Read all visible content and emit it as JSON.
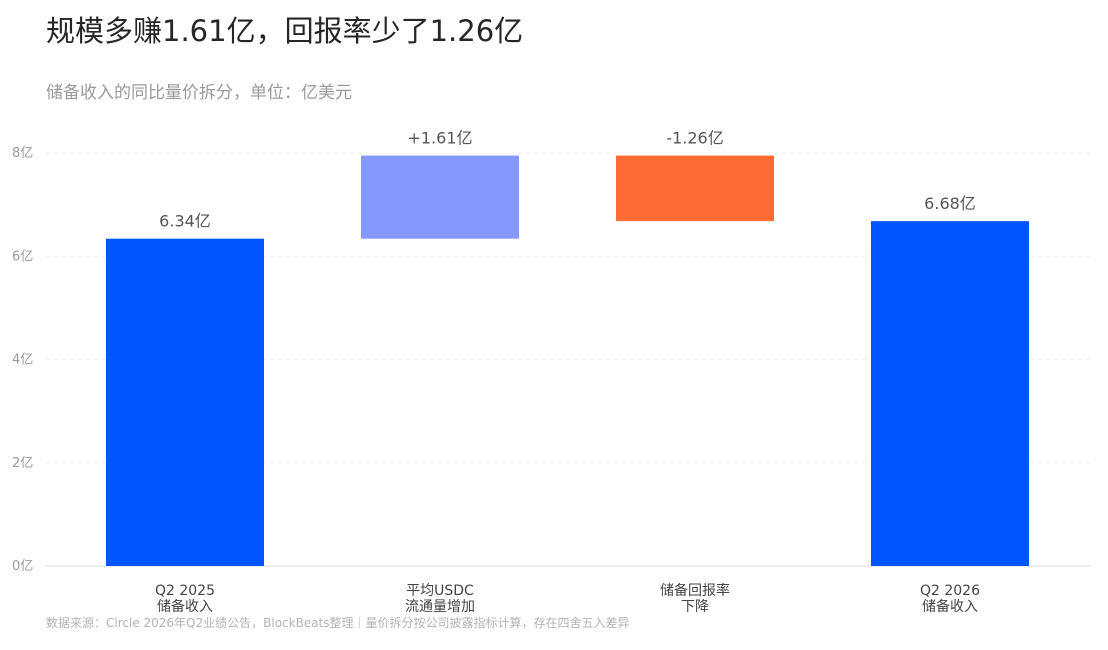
{
  "title": "规模多赚1.61亿，回报率少了1.26亿",
  "subtitle": "储备收入的同比量价拆分，单位：亿美元",
  "source": "数据来源：Circle 2026年Q2业绩公告，BlockBeats整理｜量价拆分按公司披露指标计算，存在四舍五入差异",
  "chart_data": {
    "type": "bar",
    "variant": "waterfall",
    "categories": [
      [
        "Q2 2025",
        "储备收入"
      ],
      [
        "平均USDC",
        "流通量增加"
      ],
      [
        "储备回报率",
        "下降"
      ],
      [
        "Q2 2026",
        "储备收入"
      ]
    ],
    "bars": [
      {
        "start": 0,
        "end": 6.34,
        "label": "6.34亿",
        "color": "#0055ff"
      },
      {
        "start": 6.34,
        "end": 7.95,
        "label": "+1.61亿",
        "color": "#8599fd"
      },
      {
        "start": 7.95,
        "end": 6.68,
        "label": "-1.26亿",
        "color": "#ff6b35"
      },
      {
        "start": 0,
        "end": 6.68,
        "label": "6.68亿",
        "color": "#0055ff"
      }
    ],
    "yticks": [
      0,
      2,
      4,
      6,
      8
    ],
    "ytick_labels": [
      "0亿",
      "2亿",
      "4亿",
      "6亿",
      "8亿"
    ],
    "ylim": [
      0,
      8
    ],
    "grid": true
  }
}
